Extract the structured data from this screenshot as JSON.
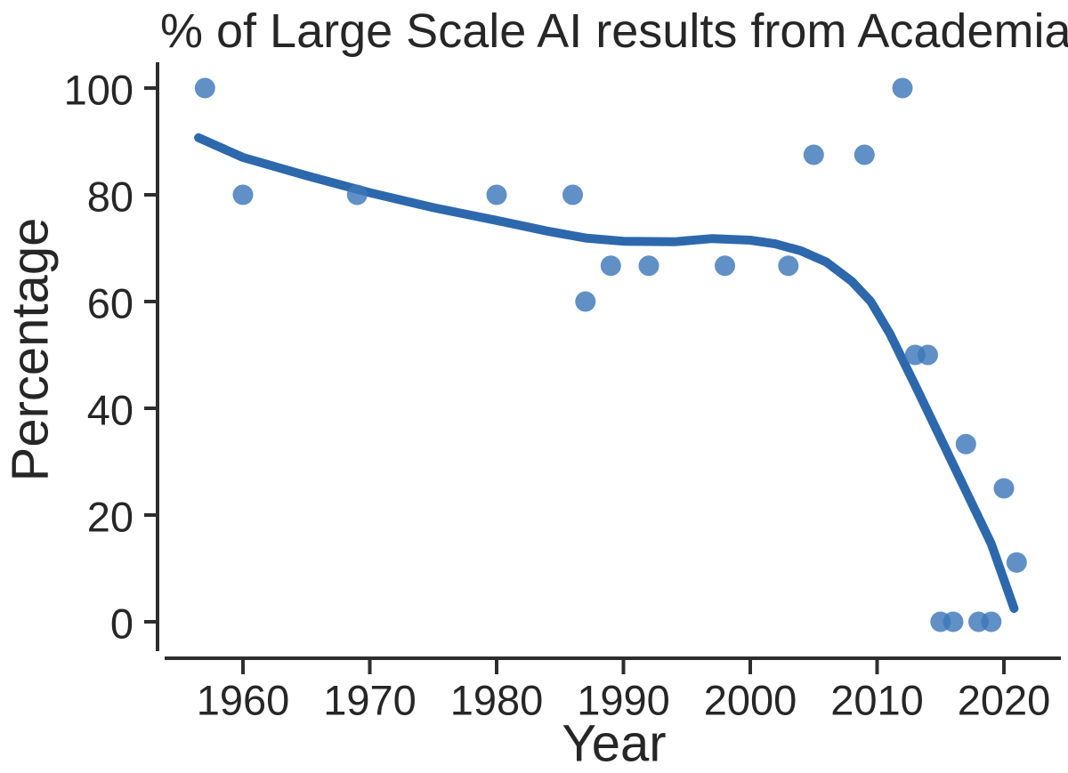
{
  "chart_data": {
    "type": "scatter",
    "title": "% of Large Scale AI results from Academia",
    "xlabel": "Year",
    "ylabel": "Percentage",
    "x_ticks": [
      1960,
      1970,
      1980,
      1990,
      2000,
      2010,
      2020
    ],
    "y_ticks": [
      0,
      20,
      40,
      60,
      80,
      100
    ],
    "xlim": [
      1953,
      2024.5
    ],
    "ylim": [
      -7,
      105
    ],
    "grid": false,
    "legend": "none",
    "points": [
      {
        "year": 1957,
        "value": 100
      },
      {
        "year": 1960,
        "value": 80
      },
      {
        "year": 1969,
        "value": 80
      },
      {
        "year": 1980,
        "value": 80
      },
      {
        "year": 1986,
        "value": 80
      },
      {
        "year": 1987,
        "value": 60
      },
      {
        "year": 1989,
        "value": 66.7
      },
      {
        "year": 1992,
        "value": 66.7
      },
      {
        "year": 1998,
        "value": 66.7
      },
      {
        "year": 2003,
        "value": 66.7
      },
      {
        "year": 2005,
        "value": 87.5
      },
      {
        "year": 2009,
        "value": 87.5
      },
      {
        "year": 2012,
        "value": 100
      },
      {
        "year": 2013,
        "value": 50
      },
      {
        "year": 2014,
        "value": 50
      },
      {
        "year": 2015,
        "value": 0
      },
      {
        "year": 2016,
        "value": 0
      },
      {
        "year": 2017,
        "value": 33.3
      },
      {
        "year": 2018,
        "value": 0
      },
      {
        "year": 2019,
        "value": 0
      },
      {
        "year": 2020,
        "value": 25
      },
      {
        "year": 2021,
        "value": 11.1
      }
    ],
    "trend_line": [
      [
        1956.5,
        90.7
      ],
      [
        1960.0,
        87.0
      ],
      [
        1965.0,
        83.6
      ],
      [
        1970.0,
        80.4
      ],
      [
        1975.0,
        77.6
      ],
      [
        1980.0,
        75.2
      ],
      [
        1984.0,
        73.2
      ],
      [
        1987.0,
        71.9
      ],
      [
        1990.0,
        71.3
      ],
      [
        1994.0,
        71.2
      ],
      [
        1997.0,
        71.8
      ],
      [
        2000.0,
        71.5
      ],
      [
        2002.0,
        70.8
      ],
      [
        2004.0,
        69.5
      ],
      [
        2006.0,
        67.4
      ],
      [
        2008.0,
        63.8
      ],
      [
        2009.5,
        60.0
      ],
      [
        2011.0,
        54.0
      ],
      [
        2013.0,
        44.3
      ],
      [
        2015.0,
        34.4
      ],
      [
        2017.0,
        24.5
      ],
      [
        2019.0,
        14.6
      ],
      [
        2020.8,
        2.5
      ]
    ],
    "colors": {
      "scatter": "#3d77b8",
      "scatter_opacity": 0.82,
      "trend": "#2d68ad",
      "axis": "#2e2e2e",
      "text": "#262626",
      "background": "#ffffff"
    }
  }
}
